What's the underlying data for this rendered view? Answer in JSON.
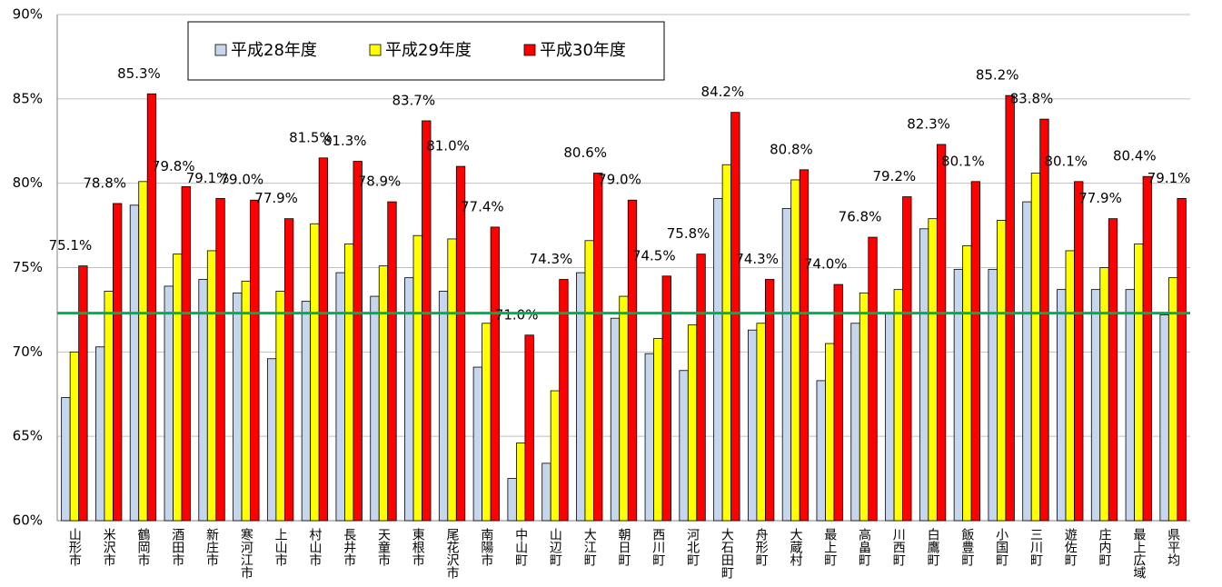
{
  "chart_data": {
    "type": "bar",
    "categories": [
      "山形市",
      "米沢市",
      "鶴岡市",
      "酒田市",
      "新庄市",
      "寒河江市",
      "上山市",
      "村山市",
      "長井市",
      "天童市",
      "東根市",
      "尾花沢市",
      "南陽市",
      "中山町",
      "山辺町",
      "大江町",
      "朝日町",
      "西川町",
      "河北町",
      "大石田町",
      "舟形町",
      "大蔵村",
      "最上町",
      "高畠町",
      "川西町",
      "白鷹町",
      "飯豊町",
      "小国町",
      "三川町",
      "遊佐町",
      "庄内町",
      "最上広域",
      "県平均"
    ],
    "series": [
      {
        "name": "平成28年度",
        "color": "#c6d6ec",
        "values": [
          67.3,
          70.3,
          78.7,
          73.9,
          74.3,
          73.5,
          69.6,
          73.0,
          74.7,
          73.3,
          74.4,
          73.6,
          69.1,
          62.5,
          63.4,
          74.7,
          72.0,
          69.9,
          68.9,
          79.1,
          71.3,
          78.5,
          68.3,
          71.7,
          72.3,
          77.3,
          74.9,
          74.9,
          78.9,
          73.7,
          73.7,
          73.7,
          72.2
        ]
      },
      {
        "name": "平成29年度",
        "color": "#ffff00",
        "values": [
          70.0,
          73.6,
          80.1,
          75.8,
          76.0,
          74.2,
          73.6,
          77.6,
          76.4,
          75.1,
          76.9,
          76.7,
          71.7,
          64.6,
          67.7,
          76.6,
          73.3,
          70.8,
          71.6,
          81.1,
          71.7,
          80.2,
          70.5,
          73.5,
          73.7,
          77.9,
          76.3,
          77.8,
          80.6,
          76.0,
          75.0,
          76.4,
          74.4
        ]
      },
      {
        "name": "平成30年度",
        "color": "#ff0000",
        "values": [
          75.1,
          78.8,
          85.3,
          79.8,
          79.1,
          79.0,
          77.9,
          81.5,
          81.3,
          78.9,
          83.7,
          81.0,
          77.4,
          71.0,
          74.3,
          80.6,
          79.0,
          74.5,
          75.8,
          84.2,
          74.3,
          80.8,
          74.0,
          76.8,
          79.2,
          82.3,
          80.1,
          85.2,
          83.8,
          80.1,
          77.9,
          80.4,
          79.1
        ],
        "value_labels": [
          "75.1%",
          "78.8%",
          "85.3%",
          "79.8%",
          "79.1%",
          "79.0%",
          "77.9%",
          "81.5%",
          "81.3%",
          "78.9%",
          "83.7%",
          "81.0%",
          "77.4%",
          "71.0%",
          "74.3%",
          "80.6%",
          "79.0%",
          "74.5%",
          "75.8%",
          "84.2%",
          "74.3%",
          "80.8%",
          "74.0%",
          "76.8%",
          "79.2%",
          "82.3%",
          "80.1%",
          "85.2%",
          "83.8%",
          "80.1%",
          "77.9%",
          "80.4%",
          "79.1%"
        ]
      }
    ],
    "ylim": [
      60,
      90
    ],
    "yticks": [
      {
        "value": 60,
        "label": "60%"
      },
      {
        "value": 65,
        "label": "65%"
      },
      {
        "value": 70,
        "label": "70%"
      },
      {
        "value": 75,
        "label": "75%"
      },
      {
        "value": 80,
        "label": "80%"
      },
      {
        "value": 85,
        "label": "85%"
      },
      {
        "value": 90,
        "label": "90%"
      }
    ],
    "grid": true,
    "hline": {
      "value": 72.3,
      "color": "#00b050"
    }
  }
}
